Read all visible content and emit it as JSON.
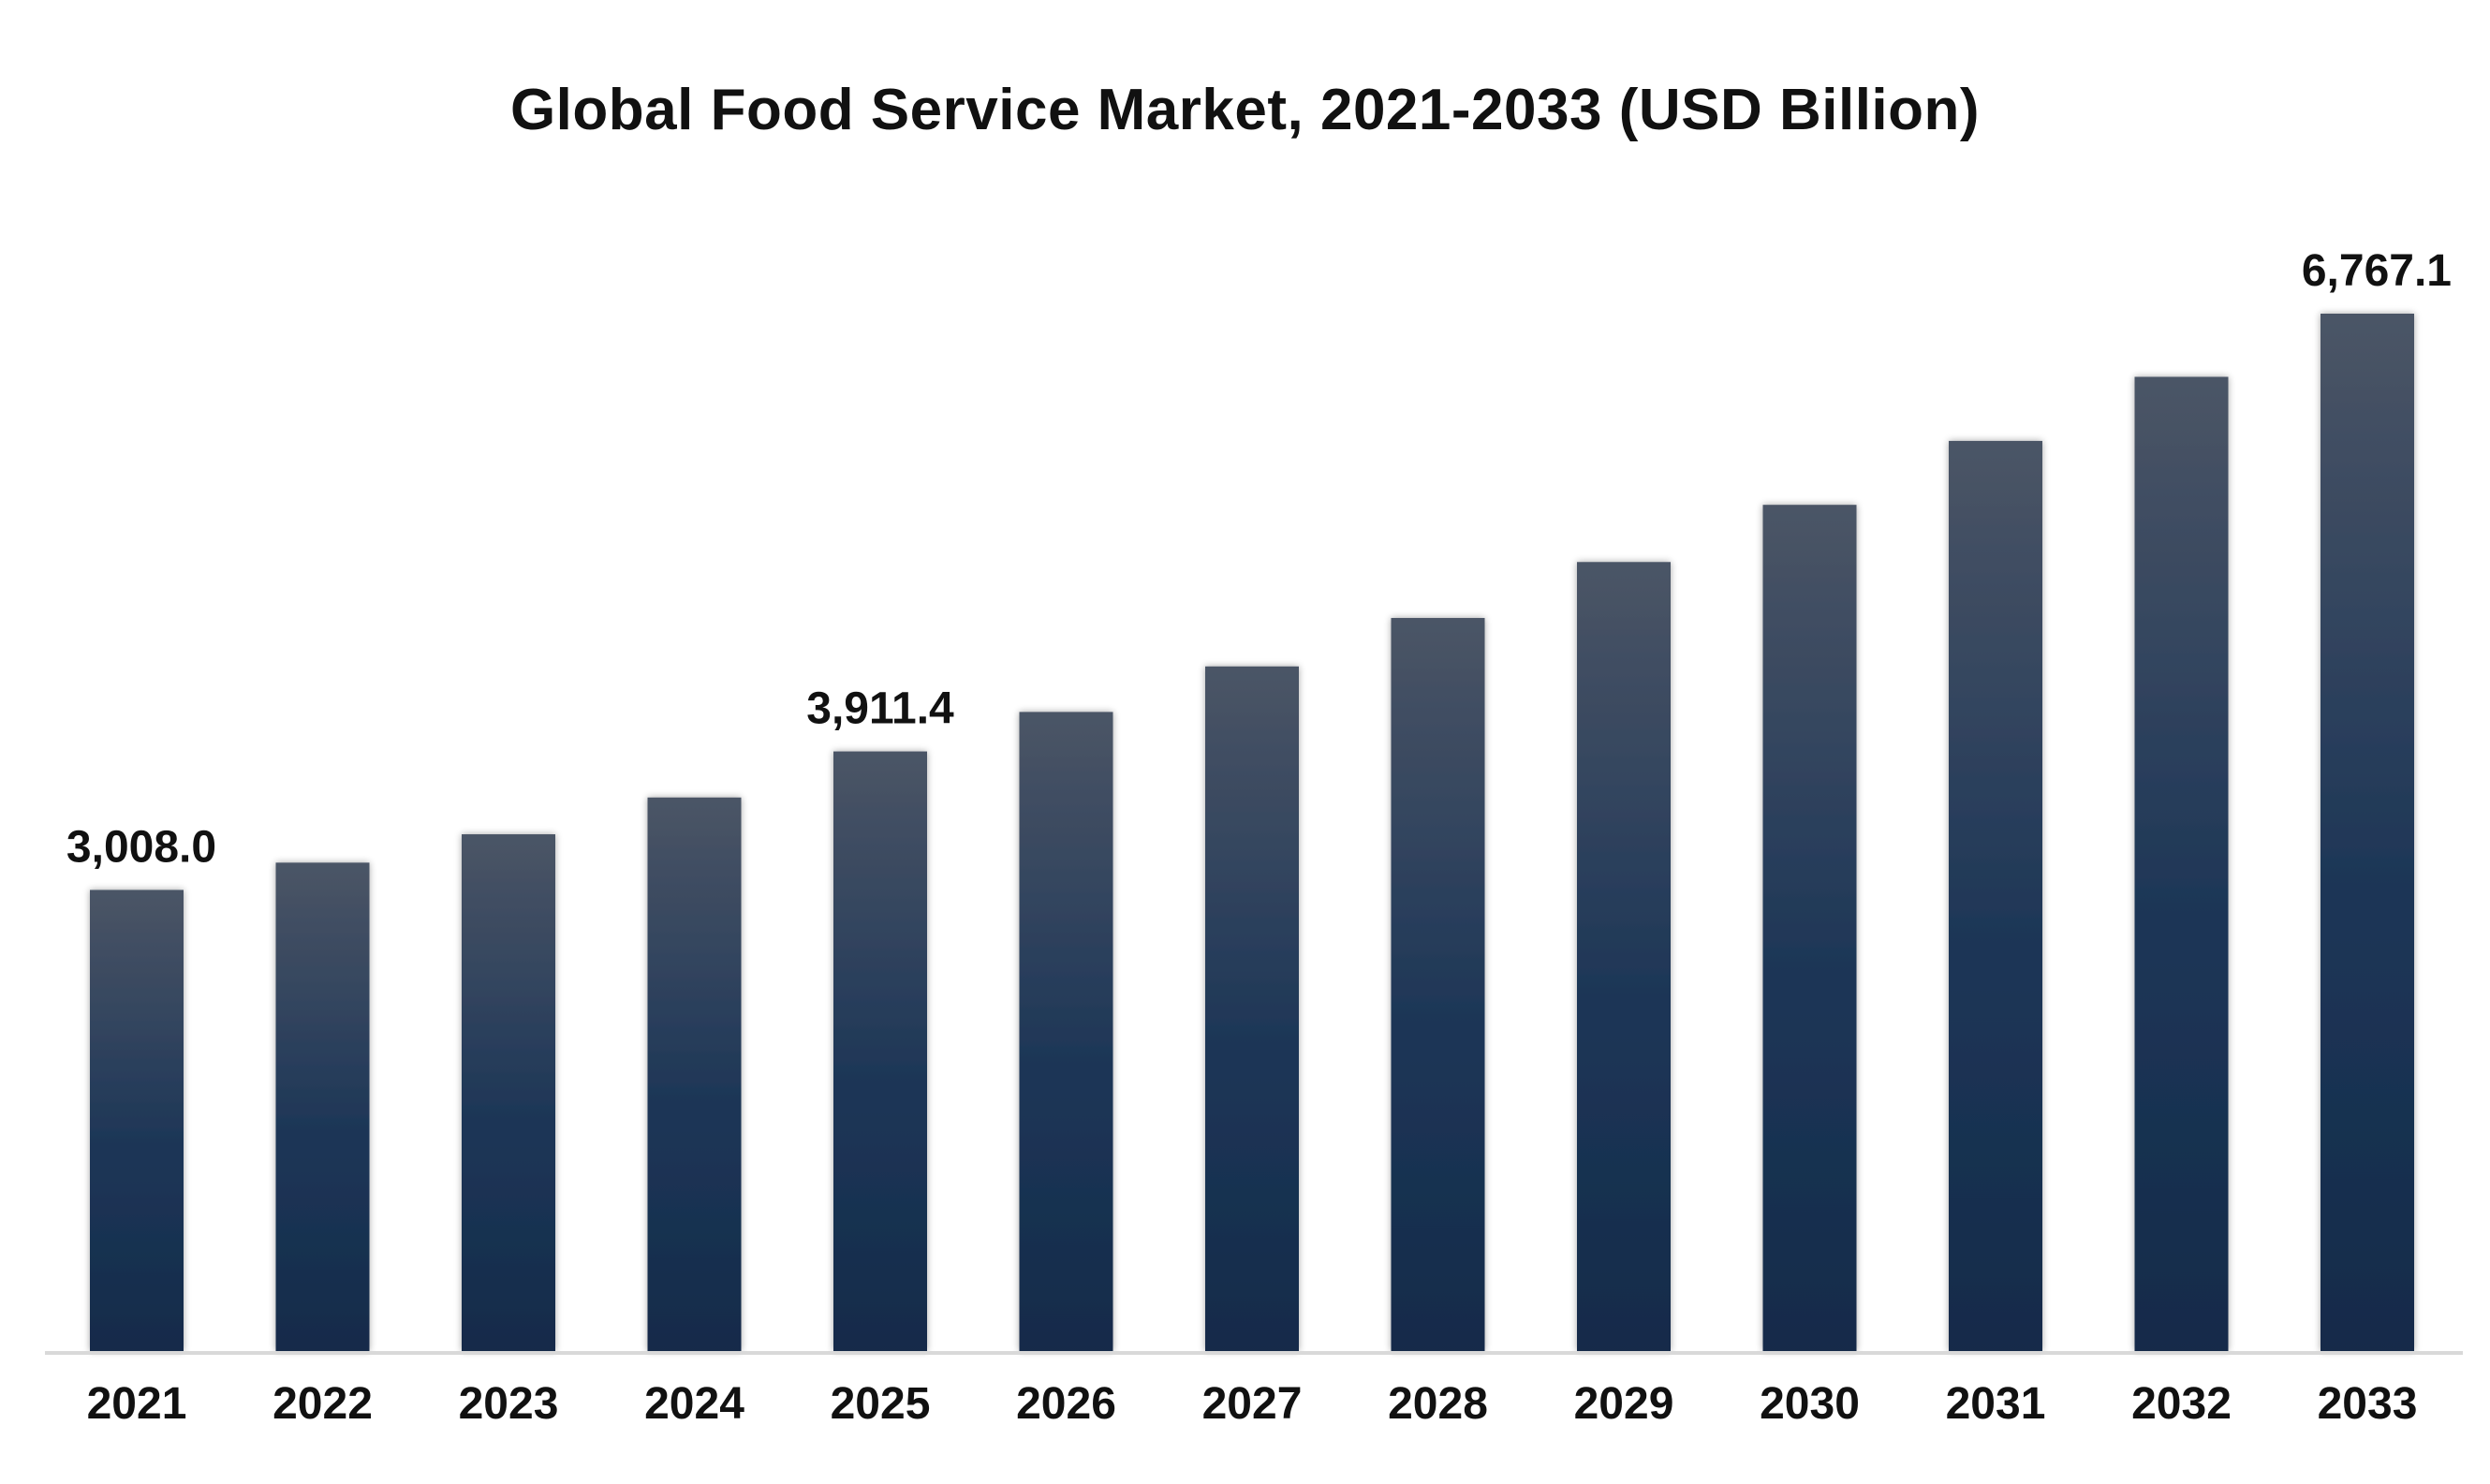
{
  "chart_data": {
    "type": "bar",
    "title": "Global Food Service Market, 2021-2033 (USD Billion)",
    "xlabel": "",
    "ylabel": "",
    "categories": [
      "2021",
      "2022",
      "2023",
      "2024",
      "2025",
      "2026",
      "2027",
      "2028",
      "2029",
      "2030",
      "2031",
      "2032",
      "2033"
    ],
    "values": [
      3008.0,
      3186,
      3371,
      3611,
      3911.4,
      4169,
      4466,
      4782,
      5147,
      5520,
      5937,
      6355,
      6767.1
    ],
    "data_labels": [
      "3,008.0",
      "",
      "",
      "",
      "3,911.4",
      "",
      "",
      "",
      "",
      "",
      "",
      "",
      "6,767.1"
    ],
    "ylim": [
      0,
      6767.1
    ],
    "grid": false,
    "legend": "none",
    "bar_color_top": "#4b5566",
    "bar_color_bottom": "#142b4a",
    "axis_color": "#d9d9d9"
  }
}
